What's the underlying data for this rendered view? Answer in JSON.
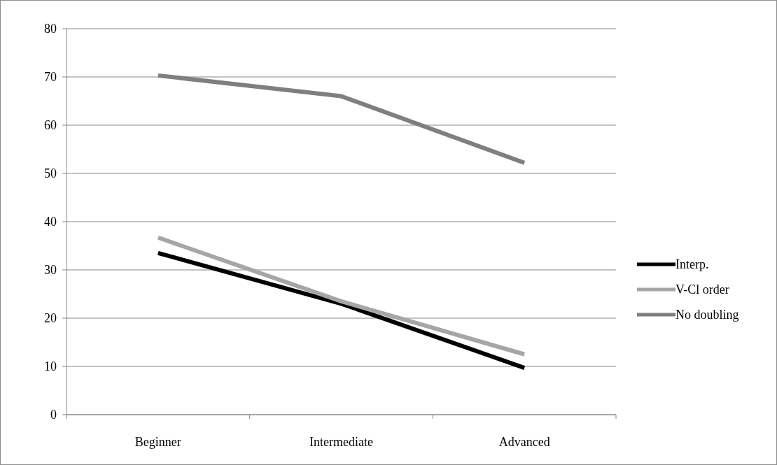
{
  "chart_data": {
    "type": "line",
    "categories": [
      "Beginner",
      "Intermediate",
      "Advanced"
    ],
    "series": [
      {
        "name": "Interp.",
        "color": "#000000",
        "values": [
          33.5,
          23,
          9.7
        ]
      },
      {
        "name": "V-Cl order",
        "color": "#a6a6a6",
        "values": [
          36.7,
          23.5,
          12.5
        ]
      },
      {
        "name": "No doubling",
        "color": "#7f7f7f",
        "values": [
          70.3,
          66,
          52.2
        ]
      }
    ],
    "ylim": [
      0,
      80
    ],
    "yticks": [
      0,
      10,
      20,
      30,
      40,
      50,
      60,
      70,
      80
    ],
    "grid": "y",
    "legend": "right",
    "marker": "none",
    "line_style": "solid"
  }
}
